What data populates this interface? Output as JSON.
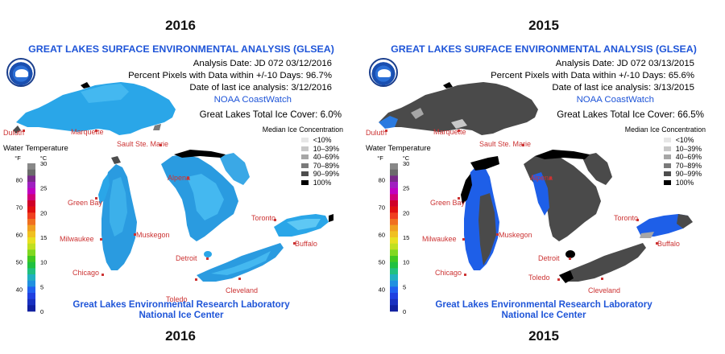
{
  "panels": [
    {
      "year_top": "2016",
      "year_bottom": "2016",
      "title": "GREAT LAKES SURFACE ENVIRONMENTAL ANALYSIS (GLSEA)",
      "analysis_date": "Analysis Date:  JD 072 03/12/2016",
      "percent_pixels": "Percent Pixels with Data within +/-10 Days:  96.7%",
      "last_ice": "Date of last ice analysis: 3/12/2016",
      "coastwatch": "NOAA CoastWatch",
      "total_ice": "Great Lakes Total Ice Cover:  6.0%",
      "footer1": "Great Lakes Environmental Research Laboratory",
      "footer2": "National Ice Center",
      "ice_cover_percent": 6.0,
      "percent_pixels_value": 96.7
    },
    {
      "year_top": "2015",
      "year_bottom": "2015",
      "title": "GREAT LAKES SURFACE ENVIRONMENTAL ANALYSIS (GLSEA)",
      "analysis_date": "Analysis Date:  JD 072 03/13/2015",
      "percent_pixels": "Percent Pixels with Data within +/-10 Days:  65.6%",
      "last_ice": "Date of last ice analysis: 3/13/2015",
      "coastwatch": "NOAA CoastWatch",
      "total_ice": "Great Lakes Total Ice Cover:  66.5%",
      "footer1": "Great Lakes Environmental Research Laboratory",
      "footer2": "National Ice Center",
      "ice_cover_percent": 66.5,
      "percent_pixels_value": 65.6
    }
  ],
  "ice_legend": {
    "title": "Median Ice Concentration",
    "items": [
      {
        "label": "<10%",
        "color": "#e6e6e6"
      },
      {
        "label": "10–39%",
        "color": "#c8c8c8"
      },
      {
        "label": "40–69%",
        "color": "#a6a6a6"
      },
      {
        "label": "70–89%",
        "color": "#7a7a7a"
      },
      {
        "label": "90–99%",
        "color": "#4d4d4d"
      },
      {
        "label": "100%",
        "color": "#000000"
      }
    ]
  },
  "temp_scale": {
    "title": "Water Temperature",
    "unit_f": "°F",
    "unit_c": "°C",
    "f_ticks": [
      "80",
      "70",
      "60",
      "50",
      "40"
    ],
    "c_ticks": [
      "30",
      "25",
      "20",
      "15",
      "10",
      "5",
      "0"
    ],
    "colors": [
      "#888888",
      "#6b6b6b",
      "#7a2a8a",
      "#a020c0",
      "#c000c0",
      "#d0007a",
      "#d00028",
      "#e01010",
      "#f04020",
      "#f07020",
      "#f0a020",
      "#f0c020",
      "#e8e020",
      "#c0e020",
      "#80d820",
      "#40c820",
      "#20c040",
      "#20c080",
      "#20b0c0",
      "#2090e0",
      "#2060f0",
      "#2040e0",
      "#1830c0",
      "#1020a0"
    ]
  },
  "cities": {
    "duluth": "Duluth",
    "marquette": "Marquette",
    "sault": "Sault Ste. Marie",
    "alpena": "Alpena",
    "green_bay": "Green Bay",
    "muskegon": "Muskegon",
    "milwaukee": "Milwaukee",
    "toronto": "Toronto",
    "buffalo": "Buffalo",
    "detroit": "Detroit",
    "chicago": "Chicago",
    "toledo": "Toledo",
    "cleveland": "Cleveland"
  },
  "colors": {
    "title_blue": "#1f55d8",
    "city_red": "#cc3333",
    "water_2016": "#2aa6e8",
    "ice_2015": "#4a4a4a"
  }
}
